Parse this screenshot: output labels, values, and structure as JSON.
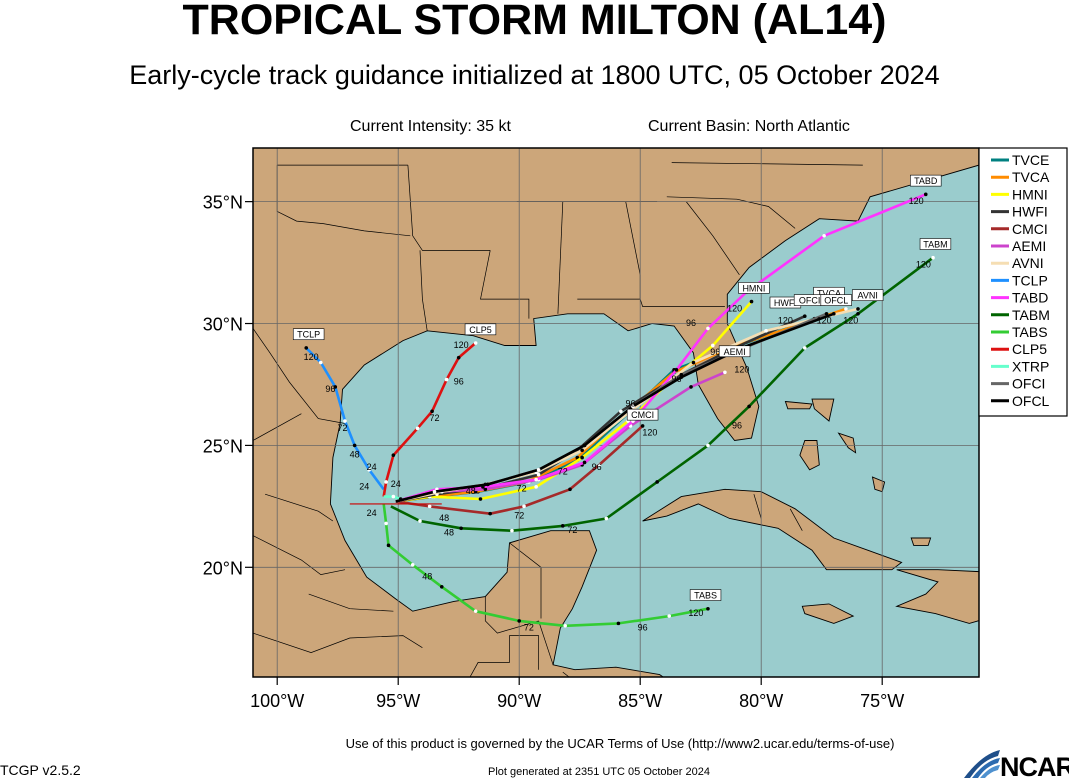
{
  "header": {
    "title": "TROPICAL STORM MILTON (AL14)",
    "subtitle": "Early-cycle track guidance initialized at 1800 UTC, 05 October 2024",
    "intensity": "Current Intensity: 35 kt",
    "basin": "Current Basin: North Atlantic"
  },
  "footer": {
    "terms": "Use of this product is governed by the UCAR Terms of Use (http://www2.ucar.edu/terms-of-use)",
    "version": "TCGP v2.5.2",
    "generated": "Plot generated at 2351 UTC   05 October 2024",
    "logo_text": "NCAR"
  },
  "colors": {
    "ocean": "#9acccd",
    "land": "#cca67a",
    "grid": "#666666"
  },
  "map": {
    "lon_range": [
      -101,
      -71
    ],
    "lat_range": [
      15.5,
      37.2
    ],
    "x_ticks": [
      -100,
      -95,
      -90,
      -85,
      -80,
      -75
    ],
    "x_tick_labels": [
      "100°W",
      "95°W",
      "90°W",
      "85°W",
      "80°W",
      "75°W"
    ],
    "y_ticks": [
      20,
      25,
      30,
      35
    ],
    "y_tick_labels": [
      "20°N",
      "25°N",
      "30°N",
      "35°N"
    ]
  },
  "legend": [
    {
      "name": "TVCE",
      "color": "#008080"
    },
    {
      "name": "TVCA",
      "color": "#ff8c00"
    },
    {
      "name": "HMNI",
      "color": "#ffff00"
    },
    {
      "name": "HWFI",
      "color": "#333333"
    },
    {
      "name": "CMCI",
      "color": "#a52a2a"
    },
    {
      "name": "AEMI",
      "color": "#cc44cc"
    },
    {
      "name": "AVNI",
      "color": "#f5deb3"
    },
    {
      "name": "TCLP",
      "color": "#1e90ff"
    },
    {
      "name": "TABD",
      "color": "#ff33ff"
    },
    {
      "name": "TABM",
      "color": "#006400"
    },
    {
      "name": "TABS",
      "color": "#33cc33"
    },
    {
      "name": "CLP5",
      "color": "#dd1111"
    },
    {
      "name": "XTRP",
      "color": "#66ffcc"
    },
    {
      "name": "OFCI",
      "color": "#666666"
    },
    {
      "name": "OFCL",
      "color": "#000000"
    }
  ],
  "tracks": [
    {
      "name": "TVCE",
      "color": "#008080",
      "points": [
        [
          -95.1,
          22.7
        ],
        [
          -93.5,
          22.9
        ],
        [
          -91.7,
          23.1
        ],
        [
          -89.6,
          23.5
        ],
        [
          -87.6,
          24.4
        ],
        [
          -85.3,
          26.5
        ],
        [
          -83.6,
          28.1
        ],
        [
          -81.2,
          29.0
        ],
        [
          -77.8,
          30.2
        ],
        [
          -76.7,
          30.5
        ]
      ],
      "label": "TVCA",
      "label_at": [
        -77.2,
        31.2
      ]
    },
    {
      "name": "TVCA",
      "color": "#ff8c00",
      "points": [
        [
          -95.1,
          22.7
        ],
        [
          -93.6,
          22.9
        ],
        [
          -91.8,
          23.1
        ],
        [
          -89.7,
          23.5
        ],
        [
          -87.6,
          24.5
        ],
        [
          -85.4,
          26.5
        ],
        [
          -83.6,
          28.0
        ],
        [
          -81.3,
          29.0
        ],
        [
          -78.0,
          30.1
        ],
        [
          -76.5,
          30.6
        ]
      ]
    },
    {
      "name": "HMNI",
      "color": "#ffff00",
      "points": [
        [
          -95.1,
          22.7
        ],
        [
          -93.7,
          22.9
        ],
        [
          -91.6,
          22.8
        ],
        [
          -89.3,
          23.3
        ],
        [
          -87.4,
          24.5
        ],
        [
          -85.5,
          26.0
        ],
        [
          -83.8,
          27.6
        ],
        [
          -82.0,
          29.1
        ],
        [
          -80.4,
          30.9
        ]
      ],
      "label": "HMNI",
      "label_at": [
        -80.3,
        31.4
      ]
    },
    {
      "name": "HWFI",
      "color": "#333333",
      "points": [
        [
          -95.1,
          22.7
        ],
        [
          -93.4,
          23.0
        ],
        [
          -91.2,
          23.3
        ],
        [
          -89.2,
          23.8
        ],
        [
          -87.6,
          24.8
        ],
        [
          -85.8,
          26.4
        ],
        [
          -83.5,
          27.8
        ],
        [
          -81.1,
          29.0
        ],
        [
          -78.2,
          30.3
        ]
      ],
      "label": "HWFI",
      "label_at": [
        -79.0,
        30.8
      ]
    },
    {
      "name": "CMCI",
      "color": "#a52a2a",
      "points": [
        [
          -95.1,
          22.7
        ],
        [
          -93.7,
          22.5
        ],
        [
          -91.2,
          22.2
        ],
        [
          -89.8,
          22.5
        ],
        [
          -87.9,
          23.2
        ],
        [
          -86.7,
          24.2
        ],
        [
          -84.9,
          25.8
        ]
      ],
      "label": "CMCI",
      "label_at": [
        -84.9,
        26.2
      ]
    },
    {
      "name": "AEMI",
      "color": "#cc44cc",
      "points": [
        [
          -95.1,
          22.7
        ],
        [
          -93.4,
          23.1
        ],
        [
          -91.4,
          23.2
        ],
        [
          -89.2,
          23.6
        ],
        [
          -87.4,
          24.2
        ],
        [
          -85.4,
          25.8
        ],
        [
          -82.9,
          27.4
        ],
        [
          -81.5,
          28.0
        ]
      ],
      "label": "AEMI",
      "label_at": [
        -81.1,
        28.8
      ]
    },
    {
      "name": "AVNI",
      "color": "#f5deb3",
      "points": [
        [
          -95.1,
          22.7
        ],
        [
          -93.2,
          23.1
        ],
        [
          -91.4,
          23.4
        ],
        [
          -89.3,
          23.9
        ],
        [
          -87.4,
          24.8
        ],
        [
          -85.4,
          26.4
        ],
        [
          -82.8,
          28.4
        ],
        [
          -79.8,
          29.7
        ],
        [
          -76.0,
          30.6
        ]
      ],
      "label": "AVNI",
      "label_at": [
        -75.6,
        31.1
      ]
    },
    {
      "name": "TCLP",
      "color": "#1e90ff",
      "points": [
        [
          -95.6,
          23.2
        ],
        [
          -96.2,
          24.0
        ],
        [
          -96.8,
          25.0
        ],
        [
          -97.2,
          26.0
        ],
        [
          -97.6,
          27.4
        ],
        [
          -98.2,
          28.4
        ],
        [
          -98.8,
          29.0
        ]
      ],
      "label": "TCLP",
      "label_at": [
        -98.7,
        29.5
      ]
    },
    {
      "name": "TABD",
      "color": "#ff33ff",
      "points": [
        [
          -95.1,
          22.7
        ],
        [
          -93.4,
          23.2
        ],
        [
          -91.5,
          23.3
        ],
        [
          -89.3,
          23.6
        ],
        [
          -87.3,
          24.3
        ],
        [
          -85.3,
          26.0
        ],
        [
          -83.5,
          28.1
        ],
        [
          -82.2,
          29.8
        ],
        [
          -80.6,
          31.3
        ],
        [
          -77.4,
          33.6
        ],
        [
          -73.2,
          35.3
        ]
      ],
      "label": "TABD",
      "label_at": [
        -73.2,
        35.8
      ]
    },
    {
      "name": "TABM",
      "color": "#006400",
      "points": [
        [
          -95.3,
          22.5
        ],
        [
          -94.1,
          21.9
        ],
        [
          -92.4,
          21.6
        ],
        [
          -90.3,
          21.5
        ],
        [
          -88.2,
          21.7
        ],
        [
          -86.4,
          22.0
        ],
        [
          -84.3,
          23.5
        ],
        [
          -82.2,
          25.0
        ],
        [
          -80.5,
          26.6
        ],
        [
          -78.2,
          29.0
        ],
        [
          -76.0,
          30.4
        ],
        [
          -72.9,
          32.7
        ]
      ],
      "label": "TABM",
      "label_at": [
        -72.8,
        33.2
      ]
    },
    {
      "name": "TABS",
      "color": "#33cc33",
      "points": [
        [
          -95.6,
          22.6
        ],
        [
          -95.5,
          21.8
        ],
        [
          -95.4,
          20.9
        ],
        [
          -94.4,
          20.1
        ],
        [
          -93.2,
          19.2
        ],
        [
          -91.8,
          18.2
        ],
        [
          -90.0,
          17.8
        ],
        [
          -88.1,
          17.6
        ],
        [
          -85.9,
          17.7
        ],
        [
          -83.8,
          18.0
        ],
        [
          -82.2,
          18.3
        ]
      ],
      "label": "TABS",
      "label_at": [
        -82.3,
        18.8
      ]
    },
    {
      "name": "CLP5",
      "color": "#dd1111",
      "points": [
        [
          -95.6,
          22.9
        ],
        [
          -95.5,
          23.5
        ],
        [
          -95.2,
          24.6
        ],
        [
          -94.2,
          25.7
        ],
        [
          -93.6,
          26.4
        ],
        [
          -93.0,
          27.7
        ],
        [
          -92.5,
          28.6
        ],
        [
          -91.8,
          29.2
        ]
      ],
      "label": "CLP5",
      "label_at": [
        -91.6,
        29.7
      ]
    },
    {
      "name": "XTRP",
      "color": "#66ffcc",
      "points": [
        [
          -95.6,
          22.9
        ],
        [
          -95.2,
          22.9
        ],
        [
          -94.9,
          22.8
        ]
      ]
    },
    {
      "name": "OFCI",
      "color": "#666666",
      "points": [
        [
          -95.1,
          22.7
        ],
        [
          -93.5,
          23.1
        ],
        [
          -91.3,
          23.4
        ],
        [
          -89.2,
          24.0
        ],
        [
          -87.3,
          25.0
        ],
        [
          -85.3,
          26.6
        ],
        [
          -83.3,
          27.9
        ],
        [
          -80.7,
          29.0
        ],
        [
          -77.3,
          30.4
        ]
      ],
      "label": "OFCI",
      "label_at": [
        -78.0,
        30.9
      ]
    },
    {
      "name": "OFCL",
      "color": "#000000",
      "points": [
        [
          -95.1,
          22.7
        ],
        [
          -93.5,
          23.1
        ],
        [
          -91.3,
          23.4
        ],
        [
          -89.2,
          24.0
        ],
        [
          -87.3,
          25.0
        ],
        [
          -85.3,
          26.6
        ],
        [
          -83.3,
          27.8
        ],
        [
          -80.8,
          29.0
        ],
        [
          -77.0,
          30.4
        ]
      ],
      "label": "OFCL",
      "label_at": [
        -76.9,
        30.9
      ]
    }
  ],
  "forecast_hour_labels": [
    {
      "text": "120",
      "at": [
        -98.6,
        28.5
      ]
    },
    {
      "text": "96",
      "at": [
        -97.8,
        27.2
      ]
    },
    {
      "text": "72",
      "at": [
        -97.3,
        25.6
      ]
    },
    {
      "text": "48",
      "at": [
        -96.8,
        24.5
      ]
    },
    {
      "text": "24",
      "at": [
        -96.1,
        24.0
      ]
    },
    {
      "text": "24",
      "at": [
        -96.4,
        23.2
      ]
    },
    {
      "text": "24",
      "at": [
        -95.1,
        23.3
      ]
    },
    {
      "text": "24",
      "at": [
        -96.1,
        22.1
      ]
    },
    {
      "text": "48",
      "at": [
        -93.1,
        21.9
      ]
    },
    {
      "text": "48",
      "at": [
        -92.9,
        21.3
      ]
    },
    {
      "text": "48",
      "at": [
        -92.0,
        23.0
      ]
    },
    {
      "text": "48",
      "at": [
        -93.8,
        19.5
      ]
    },
    {
      "text": "72",
      "at": [
        -90.0,
        22.0
      ]
    },
    {
      "text": "72",
      "at": [
        -87.8,
        21.4
      ]
    },
    {
      "text": "72",
      "at": [
        -89.9,
        23.1
      ]
    },
    {
      "text": "72",
      "at": [
        -89.6,
        17.4
      ]
    },
    {
      "text": "72",
      "at": [
        -88.2,
        23.8
      ]
    },
    {
      "text": "72",
      "at": [
        -93.5,
        26.0
      ]
    },
    {
      "text": "96",
      "at": [
        -86.8,
        24.0
      ]
    },
    {
      "text": "96",
      "at": [
        -85.4,
        26.6
      ]
    },
    {
      "text": "96",
      "at": [
        -84.9,
        17.4
      ]
    },
    {
      "text": "96",
      "at": [
        -81.0,
        25.7
      ]
    },
    {
      "text": "96",
      "at": [
        -83.5,
        27.6
      ]
    },
    {
      "text": "96",
      "at": [
        -81.9,
        28.7
      ]
    },
    {
      "text": "96",
      "at": [
        -92.5,
        27.5
      ]
    },
    {
      "text": "96",
      "at": [
        -82.9,
        29.9
      ]
    },
    {
      "text": "120",
      "at": [
        -84.6,
        25.4
      ]
    },
    {
      "text": "120",
      "at": [
        -92.4,
        29.0
      ]
    },
    {
      "text": "120",
      "at": [
        -80.8,
        28.0
      ]
    },
    {
      "text": "120",
      "at": [
        -81.1,
        30.5
      ]
    },
    {
      "text": "120",
      "at": [
        -79.0,
        30.0
      ]
    },
    {
      "text": "120",
      "at": [
        -77.4,
        30.0
      ]
    },
    {
      "text": "120",
      "at": [
        -76.3,
        30.0
      ]
    },
    {
      "text": "120",
      "at": [
        -73.6,
        34.9
      ]
    },
    {
      "text": "120",
      "at": [
        -73.3,
        32.3
      ]
    },
    {
      "text": "120",
      "at": [
        -82.7,
        18.0
      ]
    }
  ]
}
